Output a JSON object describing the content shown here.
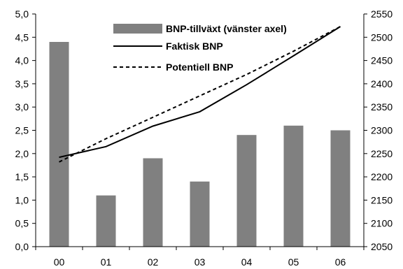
{
  "chart_data": {
    "type": "bar+line",
    "title": "",
    "xlabel": "",
    "ylabel_left": "",
    "ylabel_right": "",
    "categories": [
      "00",
      "01",
      "02",
      "03",
      "04",
      "05",
      "06"
    ],
    "left_axis": {
      "min": 0,
      "max": 5,
      "ticks": [
        "0,0",
        "0,5",
        "1,0",
        "1,5",
        "2,0",
        "2,5",
        "3,0",
        "3,5",
        "4,0",
        "4,5",
        "5,0"
      ]
    },
    "right_axis": {
      "min": 2050,
      "max": 2550,
      "ticks": [
        "2050",
        "2100",
        "2150",
        "2200",
        "2250",
        "2300",
        "2350",
        "2400",
        "2450",
        "2500",
        "2550"
      ]
    },
    "series": [
      {
        "name": "BNP-tillväxt (vänster axel)",
        "type": "bar",
        "axis": "left",
        "color": "#808080",
        "values": [
          4.4,
          1.1,
          1.9,
          1.4,
          2.4,
          2.6,
          2.5
        ]
      },
      {
        "name": "Faktisk BNP",
        "type": "line",
        "axis": "right",
        "style": "solid",
        "color": "#000000",
        "values": [
          2242,
          2265,
          2309,
          2340,
          2398,
          2460,
          2523
        ]
      },
      {
        "name": "Potentiell BNP",
        "type": "line",
        "axis": "right",
        "style": "dotted",
        "color": "#000000",
        "values": [
          2232,
          2282,
          2328,
          2374,
          2420,
          2470,
          2523
        ]
      }
    ],
    "legend_position": "top-center",
    "grid": false
  }
}
